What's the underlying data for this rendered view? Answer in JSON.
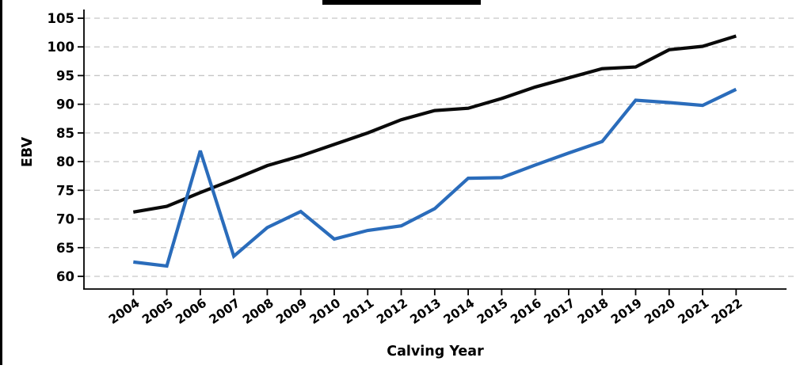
{
  "chart_data": {
    "type": "line",
    "title": "",
    "xlabel": "Calving Year",
    "ylabel": "EBV",
    "x": [
      2004,
      2005,
      2006,
      2007,
      2008,
      2009,
      2010,
      2011,
      2012,
      2013,
      2014,
      2015,
      2016,
      2017,
      2018,
      2019,
      2020,
      2021,
      2022
    ],
    "series": [
      {
        "name": "black-line",
        "color": "#0a0a0a",
        "values": [
          71.2,
          72.2,
          74.6,
          76.9,
          79.3,
          81.0,
          83.0,
          85.0,
          87.3,
          88.9,
          89.3,
          91.0,
          93.0,
          94.6,
          96.2,
          96.5,
          99.5,
          100.1,
          101.9
        ]
      },
      {
        "name": "blue-line",
        "color": "#2a6cbb",
        "values": [
          62.5,
          61.8,
          81.9,
          63.5,
          68.5,
          71.3,
          66.5,
          68.0,
          68.8,
          71.8,
          77.1,
          77.2,
          79.4,
          81.5,
          83.5,
          90.7,
          90.3,
          89.8,
          92.6
        ]
      }
    ],
    "yticks": [
      60,
      65,
      70,
      75,
      80,
      85,
      90,
      95,
      100,
      105
    ],
    "ylim": [
      57.8,
      105.9
    ],
    "grid": "horizontal-dashed",
    "legend_position": "top-center (cut off at image edge)"
  },
  "decorations": {
    "legend_bar_color": "#000000",
    "left_border_color": "#000000",
    "grid_color": "#c6c6c6",
    "axis_color": "#000000",
    "background": "#ffffff"
  }
}
